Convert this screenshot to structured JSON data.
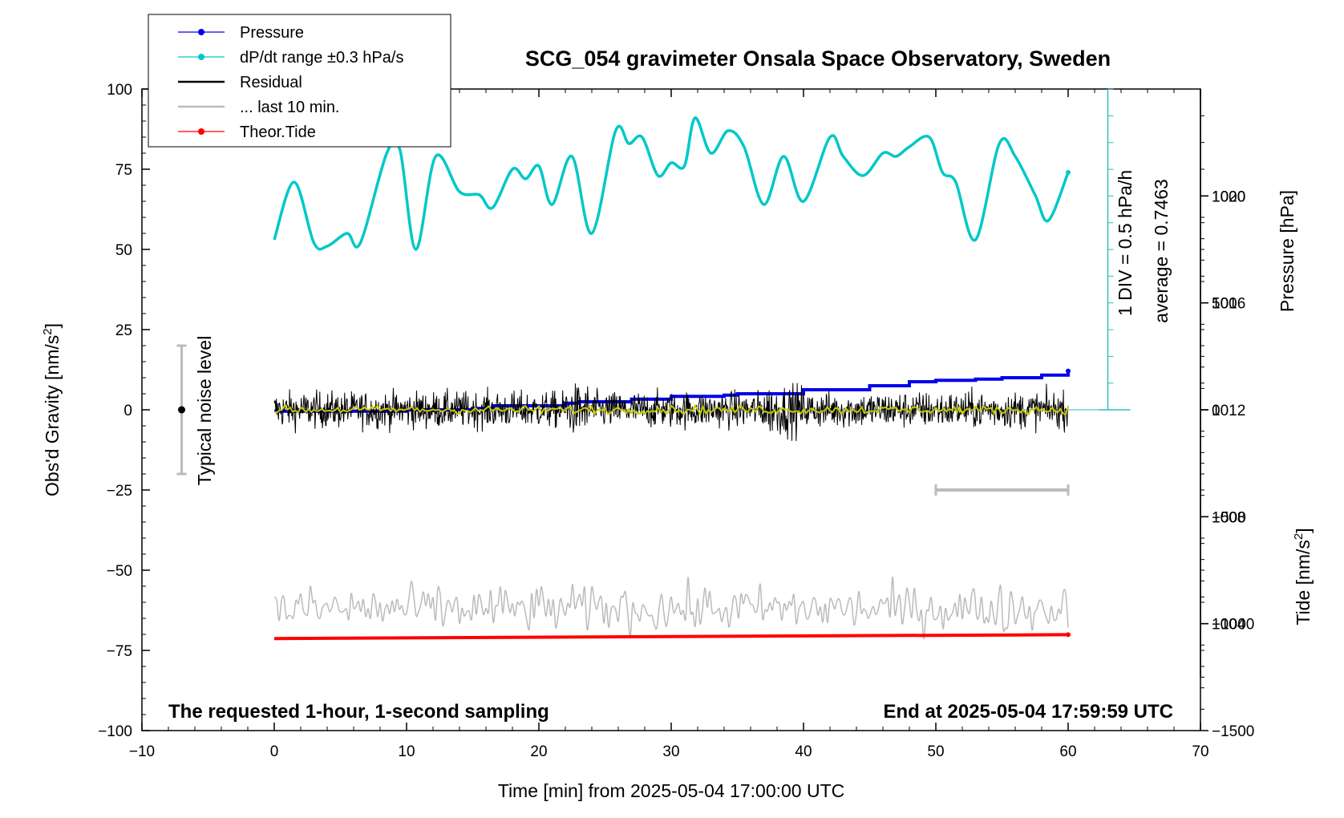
{
  "chart_data": {
    "type": "line",
    "title": "SCG_054 gravimeter Onsala Space Observatory, Sweden",
    "xlabel": "Time [min] from 2025-05-04 17:00:00 UTC",
    "ylabel_left": "Obs'd Gravity [nm/s",
    "ylabel_left_sup": "2",
    "ylabel_left_end": "]",
    "ylabel_right_pressure": "Pressure [hPa]",
    "ylabel_right_tide": "Tide [nm/s",
    "ylabel_right_tide_sup": "2",
    "ylabel_right_tide_end": "]",
    "xlim": [
      -10,
      70
    ],
    "ylim": [
      -100,
      100
    ],
    "pressure_lim": [
      1000,
      1024
    ],
    "tide_lim": [
      -1500,
      1500
    ],
    "x_ticks": [
      "−10",
      "0",
      "10",
      "20",
      "30",
      "40",
      "50",
      "60",
      "70"
    ],
    "x_tick_values": [
      -10,
      0,
      10,
      20,
      30,
      40,
      50,
      60,
      70
    ],
    "y_ticks": [
      "−100",
      "−75",
      "−50",
      "−25",
      "0",
      "25",
      "50",
      "75",
      "100"
    ],
    "y_tick_values": [
      -100,
      -75,
      -50,
      -25,
      0,
      25,
      50,
      75,
      100
    ],
    "pressure_ticks": [
      "1004",
      "1008",
      "1012",
      "1016",
      "1020"
    ],
    "pressure_tick_values": [
      1004,
      1008,
      1012,
      1016,
      1020
    ],
    "tide_ticks": [
      "−1500",
      "−1000",
      "−500",
      "0",
      "500",
      "1000"
    ],
    "tide_tick_values": [
      -1500,
      -1000,
      -500,
      0,
      500,
      1000
    ],
    "legend_placement": "top-left",
    "legend": [
      {
        "label": "Pressure",
        "color": "#0000ee",
        "marker": true
      },
      {
        "label": "dP/dt range ±0.3 hPa/s",
        "color": "#00c8c8",
        "marker": true
      },
      {
        "label": "Residual",
        "color": "#000000",
        "marker": false
      },
      {
        "label": "... last 10 min.",
        "color": "#bbbbbb",
        "marker": false
      },
      {
        "label": "Theor.Tide",
        "color": "#ff0000",
        "marker": true
      }
    ],
    "noise_label": "Typical noise level",
    "noise_range": [
      -20,
      20
    ],
    "div_label": "1 DIV = 0.5 hPa/h",
    "average_label": "average = 0.7463",
    "footer_left": "The requested 1-hour, 1-second sampling",
    "footer_right": "End at 2025-05-04 17:59:59 UTC",
    "last10_range": [
      50,
      60
    ],
    "last10_level": -25,
    "series": [
      {
        "name": "Pressure",
        "color": "#0000ee",
        "axis": "pressure",
        "x": [
          0,
          5,
          9.5,
          10,
          15,
          16.5,
          17,
          22,
          23,
          27,
          30,
          34,
          35,
          40,
          45,
          48,
          50,
          53,
          55,
          58,
          60
        ],
        "values": [
          1011.95,
          1011.95,
          1011.95,
          1012.0,
          1012.05,
          1012.15,
          1012.15,
          1012.25,
          1012.3,
          1012.4,
          1012.5,
          1012.55,
          1012.6,
          1012.75,
          1012.9,
          1013.05,
          1013.1,
          1013.15,
          1013.2,
          1013.3,
          1013.45
        ]
      },
      {
        "name": "dP/dt range ±0.3 hPa/s",
        "color": "#00c8c8",
        "axis": "gravity",
        "x": [
          0,
          1.5,
          3,
          4,
          5.5,
          6.5,
          8.5,
          9.5,
          10.7,
          12.2,
          14,
          15.5,
          16.5,
          18,
          19,
          20,
          21,
          22.5,
          24,
          25.8,
          26.8,
          27.8,
          29,
          30,
          31,
          31.8,
          33,
          34.3,
          35.5,
          37,
          38.5,
          40,
          42,
          43,
          44.5,
          46,
          47,
          48,
          49.5,
          50.5,
          51.5,
          53,
          54.8,
          56,
          57.5,
          58.5,
          60
        ],
        "values": [
          53,
          71,
          52,
          51,
          55,
          52,
          80,
          81,
          50,
          79,
          68,
          67,
          63,
          75,
          72,
          76,
          64,
          79,
          55,
          87,
          83,
          85,
          73,
          77,
          76,
          91,
          80,
          87,
          82,
          64,
          79,
          65,
          85,
          79,
          73,
          80,
          79,
          82,
          85,
          74,
          71,
          53,
          83,
          79,
          67,
          59,
          74
        ]
      },
      {
        "name": "Residual",
        "color": "#000000",
        "axis": "gravity",
        "center": 0,
        "amplitude": 4
      },
      {
        "name": "Residual smoothed",
        "color": "#c8c800",
        "axis": "gravity",
        "center": 0
      },
      {
        "name": "... last 10 min.",
        "color": "#bbbbbb",
        "axis": "gravity",
        "center": -62,
        "amplitude": 5
      },
      {
        "name": "Theor.Tide",
        "color": "#ff0000",
        "axis": "gravity",
        "x": [
          0,
          60
        ],
        "values": [
          -71.3,
          -70.1
        ]
      }
    ]
  }
}
